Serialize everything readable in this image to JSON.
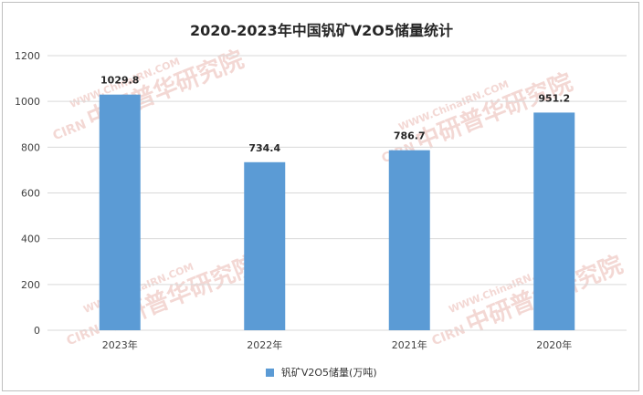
{
  "chart_data": {
    "type": "bar",
    "title": "2020-2023年中国钒矿V2O5储量统计",
    "categories": [
      "2023年",
      "2022年",
      "2021年",
      "2020年"
    ],
    "series": [
      {
        "name": "钒矿V2O5储量(万吨)",
        "values": [
          1029.8,
          734.4,
          786.7,
          951.2
        ],
        "color": "#5b9bd5"
      }
    ],
    "data_labels": [
      "1029.8",
      "734.4",
      "786.7",
      "951.2"
    ],
    "ylim": [
      0,
      1200
    ],
    "yticks": [
      "0",
      "200",
      "400",
      "600",
      "800",
      "1000",
      "1200"
    ],
    "grid": true,
    "legend_position": "bottom"
  },
  "watermark": {
    "logo_text": "CIRN",
    "url_text": "WWW.ChinaIRN.COM",
    "name_text": "中研普华研究院",
    "color": "#e6a9a2"
  }
}
